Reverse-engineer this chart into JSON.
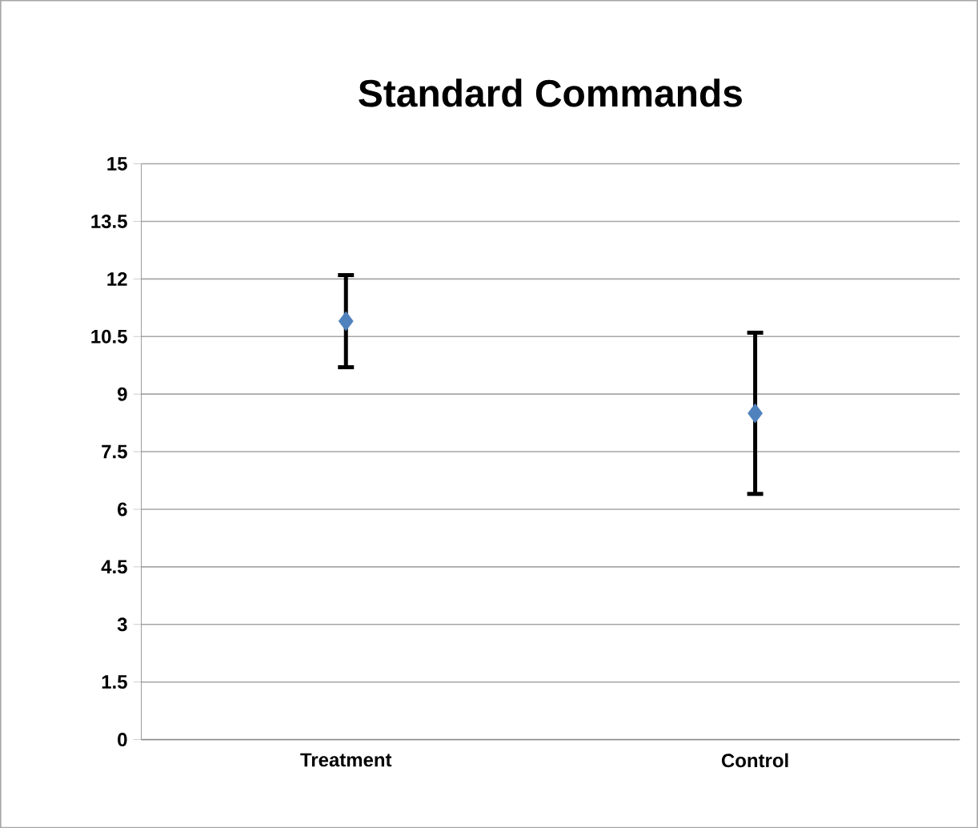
{
  "chart_data": {
    "type": "scatter",
    "title": "Standard Commands",
    "categories": [
      "Treatment",
      "Control"
    ],
    "values": [
      10.9,
      8.5
    ],
    "errors": [
      1.2,
      2.1
    ],
    "color": "#4f81bd",
    "marker": "diamond",
    "ylim": [
      0,
      15
    ],
    "yticks": [
      0,
      1.5,
      3,
      4.5,
      6,
      7.5,
      9,
      10.5,
      12,
      13.5,
      15
    ],
    "grid": "y"
  }
}
